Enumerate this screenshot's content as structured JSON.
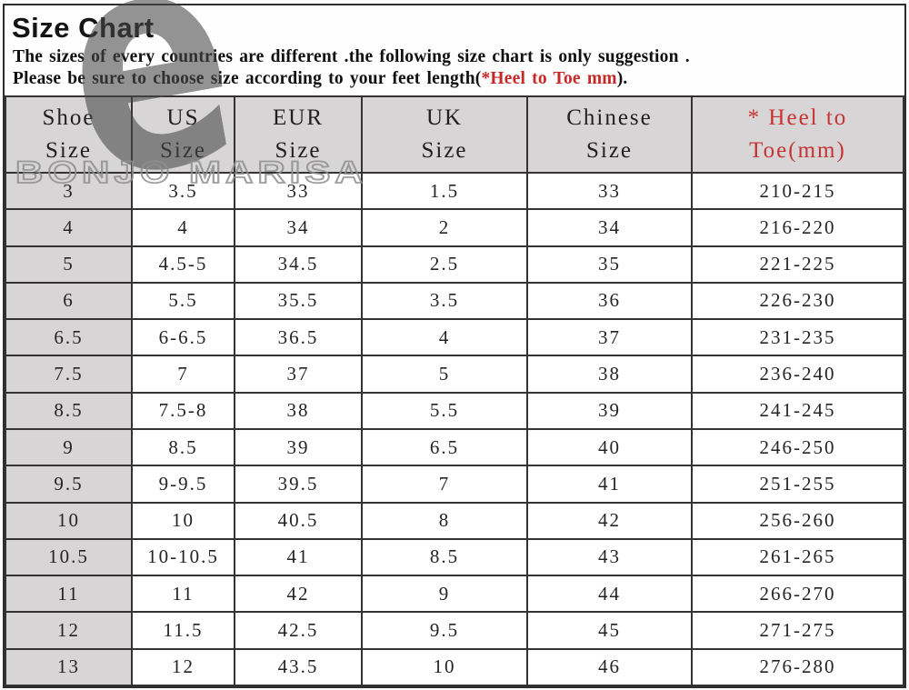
{
  "title": "Size Chart",
  "subtitle_line1": "The sizes of every countries are different .the following size chart is only suggestion .",
  "subtitle_line2": {
    "prefix": "Please be sure to choose size according to your feet length(",
    "highlight": "*Heel to Toe mm",
    "suffix": ")."
  },
  "watermark": {
    "glyph": "e",
    "brand": "BONJO MARISA"
  },
  "colors": {
    "accent_red": "#c62828",
    "header_bg": "#d7d5d5",
    "border": "#333333",
    "watermark_gray": "#8f8f8f"
  },
  "chart_data": {
    "type": "table",
    "columns": [
      {
        "line1": "Shoe",
        "line2": "Size",
        "accent": false
      },
      {
        "line1": "US",
        "line2": "Size",
        "accent": false
      },
      {
        "line1": "EUR",
        "line2": "Size",
        "accent": false
      },
      {
        "line1": "UK",
        "line2": "Size",
        "accent": false
      },
      {
        "line1": "Chinese",
        "line2": "Size",
        "accent": false
      },
      {
        "line1": "* Heel to",
        "line2": "Toe(mm)",
        "accent": true
      }
    ],
    "rows": [
      [
        "3",
        "3.5",
        "33",
        "1.5",
        "33",
        "210-215"
      ],
      [
        "4",
        "4",
        "34",
        "2",
        "34",
        "216-220"
      ],
      [
        "5",
        "4.5-5",
        "34.5",
        "2.5",
        "35",
        "221-225"
      ],
      [
        "6",
        "5.5",
        "35.5",
        "3.5",
        "36",
        "226-230"
      ],
      [
        "6.5",
        "6-6.5",
        "36.5",
        "4",
        "37",
        "231-235"
      ],
      [
        "7.5",
        "7",
        "37",
        "5",
        "38",
        "236-240"
      ],
      [
        "8.5",
        "7.5-8",
        "38",
        "5.5",
        "39",
        "241-245"
      ],
      [
        "9",
        "8.5",
        "39",
        "6.5",
        "40",
        "246-250"
      ],
      [
        "9.5",
        "9-9.5",
        "39.5",
        "7",
        "41",
        "251-255"
      ],
      [
        "10",
        "10",
        "40.5",
        "8",
        "42",
        "256-260"
      ],
      [
        "10.5",
        "10-10.5",
        "41",
        "8.5",
        "43",
        "261-265"
      ],
      [
        "11",
        "11",
        "42",
        "9",
        "44",
        "266-270"
      ],
      [
        "12",
        "11.5",
        "42.5",
        "9.5",
        "45",
        "271-275"
      ],
      [
        "13",
        "12",
        "43.5",
        "10",
        "46",
        "276-280"
      ]
    ]
  }
}
